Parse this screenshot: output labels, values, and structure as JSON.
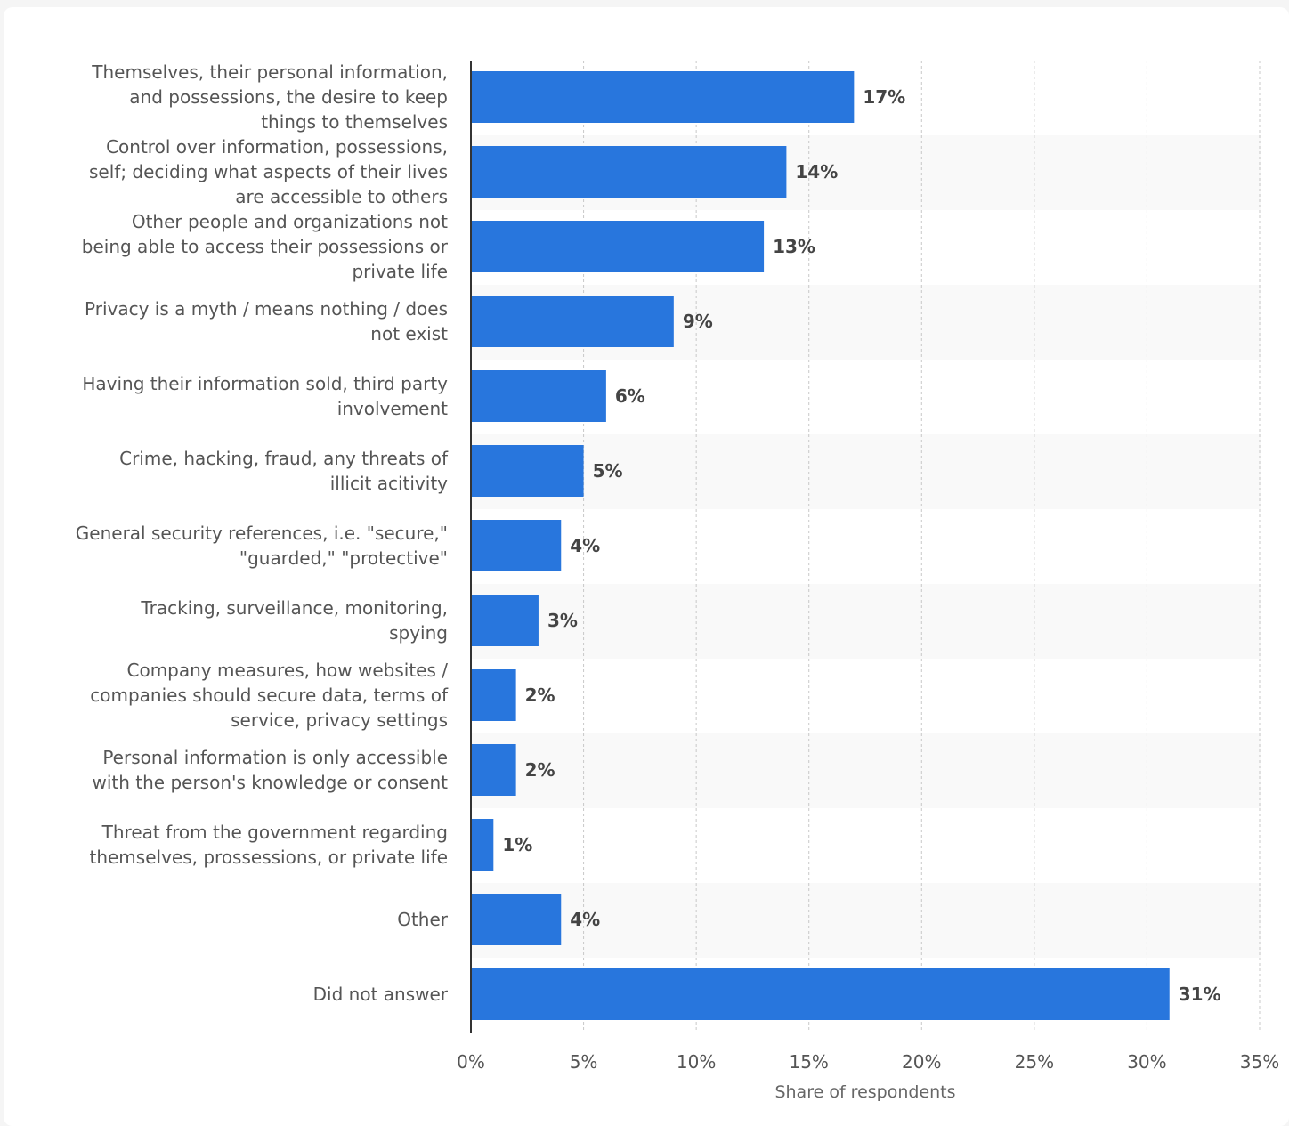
{
  "chart_data": {
    "type": "bar",
    "orientation": "horizontal",
    "categories": [
      "Themselves, their personal information, and possessions, the desire to keep things to themselves",
      "Control over information, possessions, self; deciding what aspects of their lives are accessible to others",
      "Other people and organizations not being able to access their possessions or private life",
      "Privacy is a myth / means nothing / does not exist",
      "Having their information sold, third party involvement",
      "Crime, hacking, fraud, any threats of illicit acitivity",
      "General security references, i.e. \"secure,\" \"guarded,\" \"protective\"",
      "Tracking, surveillance, monitoring, spying",
      "Company measures, how websites / companies should secure data, terms of service, privacy settings",
      "Personal information is only accessible with the person's knowledge or consent",
      "Threat from the government regarding themselves, prossessions, or private life",
      "Other",
      "Did not answer"
    ],
    "category_lines": [
      [
        "Themselves, their personal information,",
        "and possessions, the desire to keep",
        "things to themselves"
      ],
      [
        "Control over information, possessions,",
        "self; deciding what aspects of their lives",
        "are accessible to others"
      ],
      [
        "Other people and organizations not",
        "being able to access their possessions or",
        "private life"
      ],
      [
        "Privacy is a myth / means nothing / does",
        "not exist"
      ],
      [
        "Having their information sold, third party",
        "involvement"
      ],
      [
        "Crime, hacking, fraud, any threats of",
        "illicit acitivity"
      ],
      [
        "General security references, i.e. \"secure,\"",
        "\"guarded,\" \"protective\""
      ],
      [
        "Tracking, surveillance, monitoring,",
        "spying"
      ],
      [
        "Company measures, how websites /",
        "companies should secure data, terms of",
        "service, privacy settings"
      ],
      [
        "Personal information is only accessible",
        "with the person's knowledge or consent"
      ],
      [
        "Threat from the government regarding",
        "themselves, prossessions, or private life"
      ],
      [
        "Other"
      ],
      [
        "Did not answer"
      ]
    ],
    "values": [
      17,
      14,
      13,
      9,
      6,
      5,
      4,
      3,
      2,
      2,
      1,
      4,
      31
    ],
    "value_labels": [
      "17%",
      "14%",
      "13%",
      "9%",
      "6%",
      "5%",
      "4%",
      "3%",
      "2%",
      "2%",
      "1%",
      "4%",
      "31%"
    ],
    "xlim": [
      0,
      35
    ],
    "x_ticks": [
      0,
      5,
      10,
      15,
      20,
      25,
      30,
      35
    ],
    "x_tick_labels": [
      "0%",
      "5%",
      "10%",
      "15%",
      "20%",
      "25%",
      "30%",
      "35%"
    ],
    "xlabel": "Share of respondents",
    "title": "",
    "grid": true,
    "bar_color": "#2876dd",
    "band_color": "#f9f9f9"
  }
}
